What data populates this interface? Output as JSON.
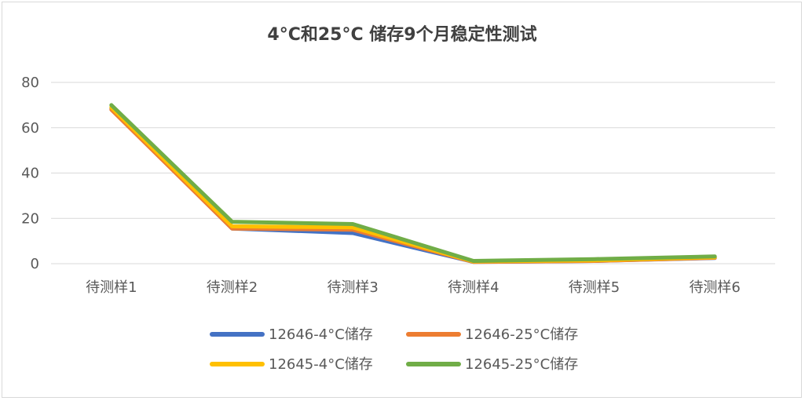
{
  "chart_data": {
    "type": "line",
    "title": "4°C和25°C 储存9个月稳定性测试",
    "xlabel": "",
    "ylabel": "",
    "ylim": [
      0,
      80
    ],
    "yticks": [
      0,
      20,
      40,
      60,
      80
    ],
    "grid": true,
    "legend_position": "bottom",
    "categories": [
      "待测样1",
      "待测样2",
      "待测样3",
      "待测样4",
      "待测样5",
      "待测样6"
    ],
    "series": [
      {
        "name": "12646-4°C储存",
        "color": "#4472C4",
        "values": [
          68.5,
          15.5,
          13.5,
          0.8,
          1.2,
          2.5
        ]
      },
      {
        "name": "12646-25°C储存",
        "color": "#ED7D31",
        "values": [
          68.0,
          15.5,
          15.0,
          0.8,
          1.2,
          2.6
        ]
      },
      {
        "name": "12645-4°C储存",
        "color": "#FFC000",
        "values": [
          69.0,
          16.5,
          16.0,
          1.0,
          1.5,
          2.8
        ]
      },
      {
        "name": "12645-25°C储存",
        "color": "#70AD47",
        "values": [
          70.0,
          18.5,
          17.5,
          1.2,
          2.0,
          3.2
        ]
      }
    ]
  }
}
